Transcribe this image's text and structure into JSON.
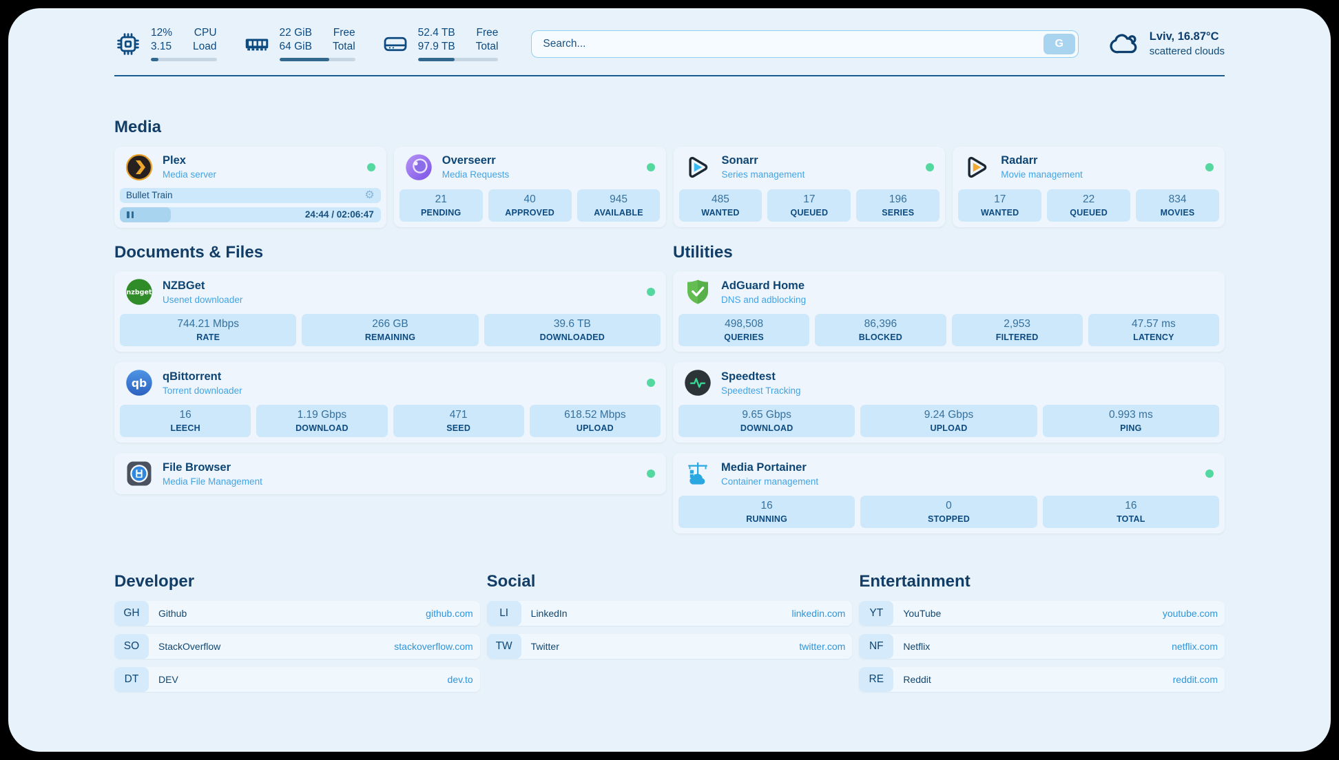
{
  "colors": {
    "status_online": "#55d7a0",
    "accent_blue": "#2e95da",
    "navy": "#0c4a80",
    "chip_bg": "#cde8fa",
    "page_bg": "#e8f2fa"
  },
  "header": {
    "stats": [
      {
        "icon": "cpu-icon",
        "value1": "12%",
        "value2": "3.15",
        "label1": "CPU",
        "label2": "Load",
        "progress": 12
      },
      {
        "icon": "ram-icon",
        "value1": "22 GiB",
        "value2": "64 GiB",
        "label1": "Free",
        "label2": "Total",
        "progress": 66
      },
      {
        "icon": "disk-icon",
        "value1": "52.4 TB",
        "value2": "97.9 TB",
        "label1": "Free",
        "label2": "Total",
        "progress": 46
      }
    ],
    "search": {
      "placeholder": "Search...",
      "button_label": "G"
    },
    "weather": {
      "icon": "cloud-icon",
      "title": "Lviv, 16.87°C",
      "subtitle": "scattered clouds"
    }
  },
  "media": {
    "title": "Media",
    "plex": {
      "icon": "plex-icon",
      "title": "Plex",
      "subtitle": "Media server",
      "now_playing": "Bullet Train",
      "control_icon": "gear-icon",
      "state_icon": "pause-icon",
      "time": "24:44 / 02:06:47",
      "progress": 19.5
    },
    "cards": [
      {
        "icon": "overseerr-icon",
        "title": "Overseerr",
        "subtitle": "Media Requests",
        "stats": [
          {
            "value": "21",
            "label": "PENDING"
          },
          {
            "value": "40",
            "label": "APPROVED"
          },
          {
            "value": "945",
            "label": "AVAILABLE"
          }
        ]
      },
      {
        "icon": "sonarr-icon",
        "title": "Sonarr",
        "subtitle": "Series management",
        "stats": [
          {
            "value": "485",
            "label": "WANTED"
          },
          {
            "value": "17",
            "label": "QUEUED"
          },
          {
            "value": "196",
            "label": "SERIES"
          }
        ]
      },
      {
        "icon": "radarr-icon",
        "title": "Radarr",
        "subtitle": "Movie management",
        "stats": [
          {
            "value": "17",
            "label": "WANTED"
          },
          {
            "value": "22",
            "label": "QUEUED"
          },
          {
            "value": "834",
            "label": "MOVIES"
          }
        ]
      }
    ]
  },
  "documents": {
    "title": "Documents & Files",
    "cards": [
      {
        "icon": "nzbget-icon",
        "title": "NZBGet",
        "subtitle": "Usenet downloader",
        "stats": [
          {
            "value": "744.21 Mbps",
            "label": "RATE"
          },
          {
            "value": "266 GB",
            "label": "REMAINING"
          },
          {
            "value": "39.6 TB",
            "label": "DOWNLOADED"
          }
        ]
      },
      {
        "icon": "qbittorrent-icon",
        "title": "qBittorrent",
        "subtitle": "Torrent downloader",
        "stats": [
          {
            "value": "16",
            "label": "LEECH"
          },
          {
            "value": "1.19 Gbps",
            "label": "DOWNLOAD"
          },
          {
            "value": "471",
            "label": "SEED"
          },
          {
            "value": "618.52 Mbps",
            "label": "UPLOAD"
          }
        ]
      },
      {
        "icon": "filebrowser-icon",
        "title": "File Browser",
        "subtitle": "Media File Management",
        "stats": []
      }
    ]
  },
  "utilities": {
    "title": "Utilities",
    "cards": [
      {
        "icon": "adguard-icon",
        "title": "AdGuard Home",
        "subtitle": "DNS and adblocking",
        "stats": [
          {
            "value": "498,508",
            "label": "QUERIES"
          },
          {
            "value": "86,396",
            "label": "BLOCKED"
          },
          {
            "value": "2,953",
            "label": "FILTERED"
          },
          {
            "value": "47.57 ms",
            "label": "LATENCY"
          }
        ]
      },
      {
        "icon": "speedtest-icon",
        "title": "Speedtest",
        "subtitle": "Speedtest Tracking",
        "stats": [
          {
            "value": "9.65 Gbps",
            "label": "DOWNLOAD"
          },
          {
            "value": "9.24 Gbps",
            "label": "UPLOAD"
          },
          {
            "value": "0.993 ms",
            "label": "PING"
          }
        ]
      },
      {
        "icon": "portainer-icon",
        "title": "Media Portainer",
        "subtitle": "Container management",
        "stats": [
          {
            "value": "16",
            "label": "RUNNING"
          },
          {
            "value": "0",
            "label": "STOPPED"
          },
          {
            "value": "16",
            "label": "TOTAL"
          }
        ]
      }
    ]
  },
  "bookmarks": {
    "groups": [
      {
        "title": "Developer",
        "items": [
          {
            "abbr": "GH",
            "label": "Github",
            "url": "github.com"
          },
          {
            "abbr": "SO",
            "label": "StackOverflow",
            "url": "stackoverflow.com"
          },
          {
            "abbr": "DT",
            "label": "DEV",
            "url": "dev.to"
          }
        ]
      },
      {
        "title": "Social",
        "items": [
          {
            "abbr": "LI",
            "label": "LinkedIn",
            "url": "linkedin.com"
          },
          {
            "abbr": "TW",
            "label": "Twitter",
            "url": "twitter.com"
          }
        ]
      },
      {
        "title": "Entertainment",
        "items": [
          {
            "abbr": "YT",
            "label": "YouTube",
            "url": "youtube.com"
          },
          {
            "abbr": "NF",
            "label": "Netflix",
            "url": "netflix.com"
          },
          {
            "abbr": "RE",
            "label": "Reddit",
            "url": "reddit.com"
          }
        ]
      }
    ]
  }
}
